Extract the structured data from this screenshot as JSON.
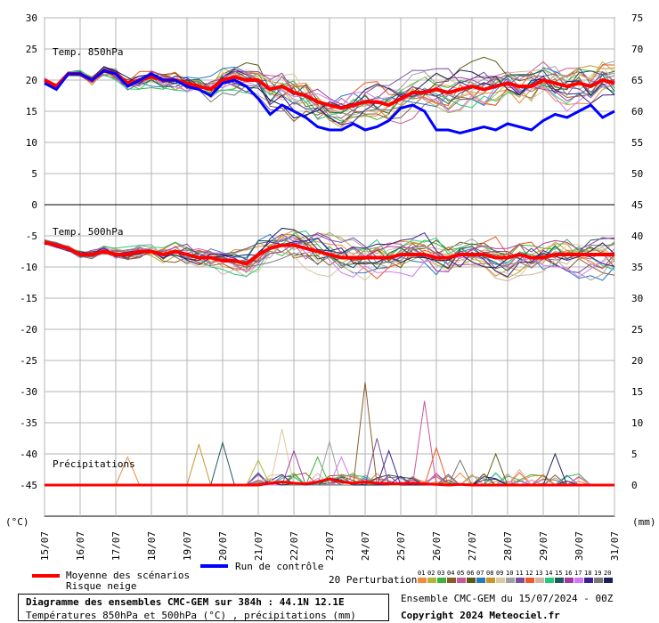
{
  "chart_data": {
    "type": "line",
    "left_axis_ticks": [
      "30",
      "25",
      "20",
      "15",
      "10",
      "5",
      "0",
      "-5",
      "-10",
      "-15",
      "-20",
      "-25",
      "-30",
      "-35",
      "-40",
      "-45"
    ],
    "right_axis_ticks": [
      "75",
      "70",
      "65",
      "60",
      "55",
      "50",
      "45",
      "40",
      "35",
      "30",
      "25",
      "20",
      "15",
      "10",
      "5",
      "0"
    ],
    "left_unit": "(°C)",
    "right_unit": "(mm)",
    "x_labels": [
      "15/07",
      "16/07",
      "17/07",
      "18/07",
      "19/07",
      "20/07",
      "21/07",
      "22/07",
      "23/07",
      "24/07",
      "25/07",
      "26/07",
      "27/07",
      "28/07",
      "29/07",
      "30/07",
      "31/07"
    ],
    "panel_labels": {
      "t850": "Temp. 850hPa",
      "t500": "Temp. 500hPa",
      "precip": "Précipitations"
    },
    "t850_mean": [
      20,
      19,
      21,
      21,
      20,
      21.5,
      21,
      19.5,
      20,
      20.5,
      20,
      20,
      19.5,
      19,
      18.5,
      20,
      20.5,
      20,
      20,
      18.5,
      19,
      18,
      17.5,
      16.5,
      16,
      15.5,
      16,
      16.5,
      16.5,
      16,
      17,
      18,
      18,
      18.5,
      18,
      18.5,
      19,
      18.5,
      19,
      19.5,
      19,
      19,
      20,
      19.5,
      19,
      19.5,
      19,
      20,
      19.5
    ],
    "t850_control": [
      19.5,
      18.5,
      21,
      21,
      20,
      21.5,
      21,
      19,
      20,
      21,
      20,
      20,
      19,
      18.5,
      17.5,
      19.5,
      20,
      19,
      17,
      14.5,
      16,
      15,
      14,
      12.5,
      12,
      12,
      13,
      12,
      12.5,
      13.5,
      15.5,
      16,
      15,
      12,
      12,
      11.5,
      12,
      12.5,
      12,
      13,
      12.5,
      12,
      13.5,
      14.5,
      14,
      15,
      16,
      14,
      15
    ],
    "t500_mean": [
      -6,
      -6.5,
      -7,
      -8,
      -8,
      -7.5,
      -8,
      -8,
      -7.5,
      -7.5,
      -8,
      -7.5,
      -8,
      -8.5,
      -8.5,
      -9,
      -9,
      -9.5,
      -8,
      -7,
      -6.5,
      -6.5,
      -7,
      -7.5,
      -8,
      -8.5,
      -8.5,
      -8.5,
      -8.5,
      -8.5,
      -8,
      -8,
      -8,
      -8.5,
      -8.5,
      -8,
      -8,
      -8,
      -8.5,
      -8.5,
      -8,
      -8.5,
      -8.5,
      -8,
      -8,
      -8,
      -8,
      -8,
      -8
    ],
    "t500_control": [
      -6,
      -6.5,
      -7,
      -8,
      -8,
      -8,
      -8,
      -7.5,
      -7.5,
      -8,
      -8,
      -8.5,
      -8.5,
      -9,
      -9.5,
      -10,
      -10,
      -10.5,
      -8.5,
      -6.5,
      -6,
      -7,
      -8,
      -10.5,
      -11,
      -11.5,
      -12,
      -12.5,
      -13,
      -12.5,
      -11,
      -11.5,
      -14,
      -15,
      -14.5,
      -13.5,
      -13.5,
      -13.5,
      -12,
      -11,
      -11,
      -10,
      -10,
      -9.5,
      -9.5,
      -9,
      -9,
      -8.5,
      -9
    ],
    "precip_mean": [
      0,
      0,
      0,
      0,
      0,
      0,
      0,
      0,
      0,
      0,
      0,
      0,
      0,
      0,
      0,
      0,
      0,
      0,
      0,
      0.3,
      0.5,
      0.3,
      0.2,
      0.5,
      1,
      0.5,
      0.3,
      0.5,
      0.3,
      0.2,
      0.2,
      0.3,
      0.2,
      0.1,
      0,
      0.1,
      0,
      0,
      0,
      0,
      0,
      0,
      0,
      0,
      0,
      0,
      0,
      0,
      0
    ],
    "precip_peaks": [
      {
        "i": 7,
        "v": 4.5
      },
      {
        "i": 13,
        "v": 6.5
      },
      {
        "i": 15,
        "v": 6.8
      },
      {
        "i": 18,
        "v": 4
      },
      {
        "i": 20,
        "v": 9
      },
      {
        "i": 21,
        "v": 5.5
      },
      {
        "i": 23,
        "v": 4.5
      },
      {
        "i": 24,
        "v": 7
      },
      {
        "i": 25,
        "v": 4.5
      },
      {
        "i": 27,
        "v": 16.5
      },
      {
        "i": 28,
        "v": 7.5
      },
      {
        "i": 29,
        "v": 5.5
      },
      {
        "i": 32,
        "v": 13.5
      },
      {
        "i": 33,
        "v": 6
      },
      {
        "i": 35,
        "v": 4
      },
      {
        "i": 38,
        "v": 5
      },
      {
        "i": 40,
        "v": 2.5
      },
      {
        "i": 43,
        "v": 5
      }
    ],
    "n_members": 20
  },
  "legend": {
    "mean_label": "Moyenne des scénarios",
    "snow_label": "Risque neige",
    "control_label": "Run de contrôle",
    "perturbations_label": "20 Perturbations",
    "member_ids": [
      "01",
      "02",
      "03",
      "04",
      "05",
      "06",
      "07",
      "08",
      "09",
      "10",
      "11",
      "12",
      "13",
      "14",
      "15",
      "16",
      "17",
      "18",
      "19",
      "20"
    ],
    "member_colors": [
      "#f08c3c",
      "#b4b43c",
      "#3cb43c",
      "#8c5a28",
      "#c85a96",
      "#5a5a14",
      "#2878c8",
      "#c89628",
      "#dcc8a0",
      "#a0a0a0",
      "#7850a0",
      "#f05a28",
      "#d2b4a0",
      "#28c878",
      "#1e5a5a",
      "#a03ca0",
      "#d278f0",
      "#3c1e8c",
      "#787878",
      "#1e1e5a"
    ],
    "mean_color": "#ff0000",
    "control_color": "#0000ff"
  },
  "footer": {
    "title": "Diagramme des ensembles CMC-GEM sur 384h : 44.1N 12.1E",
    "subtitle": "Températures 850hPa et 500hPa (°C) , précipitations (mm)",
    "ensemble": "Ensemble CMC-GEM du 15/07/2024 - 00Z",
    "copyright": "Copyright 2024 Meteociel.fr"
  }
}
